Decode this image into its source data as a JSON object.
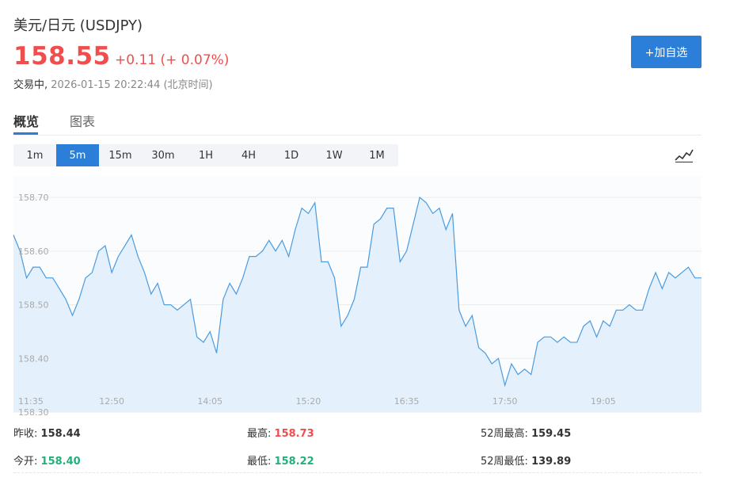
{
  "header": {
    "title": "美元/日元 (USDJPY)",
    "price": "158.55",
    "change": "+0.11 (+ 0.07%)",
    "status": "交易中,",
    "timestamp": "2026-01-15 20:22:44 (北京时间)",
    "add_button": "+加自选"
  },
  "tabs": [
    {
      "label": "概览",
      "active": true
    },
    {
      "label": "图表",
      "active": false
    }
  ],
  "periods": [
    {
      "label": "1m",
      "active": false
    },
    {
      "label": "5m",
      "active": true
    },
    {
      "label": "15m",
      "active": false
    },
    {
      "label": "30m",
      "active": false
    },
    {
      "label": "1H",
      "active": false
    },
    {
      "label": "4H",
      "active": false
    },
    {
      "label": "1D",
      "active": false
    },
    {
      "label": "1W",
      "active": false
    },
    {
      "label": "1M",
      "active": false
    }
  ],
  "chart_type_icon": "line-chart-icon",
  "chart_data": {
    "type": "area",
    "y_ticks": [
      "158.70",
      "158.60",
      "158.50",
      "158.40",
      "158.30"
    ],
    "ylim": [
      158.3,
      158.74
    ],
    "x_ticks": [
      "11:35",
      "12:50",
      "14:05",
      "15:20",
      "16:35",
      "17:50",
      "19:05"
    ],
    "x_tick_index": [
      0,
      15,
      30,
      45,
      60,
      75,
      90
    ],
    "values": [
      158.63,
      158.6,
      158.55,
      158.57,
      158.57,
      158.55,
      158.55,
      158.53,
      158.51,
      158.48,
      158.51,
      158.55,
      158.56,
      158.6,
      158.61,
      158.56,
      158.59,
      158.61,
      158.63,
      158.59,
      158.56,
      158.52,
      158.54,
      158.5,
      158.5,
      158.49,
      158.5,
      158.51,
      158.44,
      158.43,
      158.45,
      158.41,
      158.51,
      158.54,
      158.52,
      158.55,
      158.59,
      158.59,
      158.6,
      158.62,
      158.6,
      158.62,
      158.59,
      158.64,
      158.68,
      158.67,
      158.69,
      158.58,
      158.58,
      158.55,
      158.46,
      158.48,
      158.51,
      158.57,
      158.57,
      158.65,
      158.66,
      158.68,
      158.68,
      158.58,
      158.6,
      158.65,
      158.7,
      158.69,
      158.67,
      158.68,
      158.64,
      158.67,
      158.49,
      158.46,
      158.48,
      158.42,
      158.41,
      158.39,
      158.4,
      158.35,
      158.39,
      158.37,
      158.38,
      158.37,
      158.43,
      158.44,
      158.44,
      158.43,
      158.44,
      158.43,
      158.43,
      158.46,
      158.47,
      158.44,
      158.47,
      158.46,
      158.49,
      158.49,
      158.5,
      158.49,
      158.49,
      158.53,
      158.56,
      158.53,
      158.56,
      158.55,
      158.56,
      158.57,
      158.55,
      158.55
    ],
    "colors": {
      "line": "#4a9be0",
      "fill": "#e4f0fb",
      "grid": "#ececec",
      "axis_text": "#aaaaaa"
    }
  },
  "stats": [
    {
      "label": "昨收:",
      "value": "158.44",
      "tone": "neutral"
    },
    {
      "label": "最高:",
      "value": "158.73",
      "tone": "up"
    },
    {
      "label": "52周最高:",
      "value": "159.45",
      "tone": "neutral"
    },
    {
      "label": "今开:",
      "value": "158.40",
      "tone": "down"
    },
    {
      "label": "最低:",
      "value": "158.22",
      "tone": "down"
    },
    {
      "label": "52周最低:",
      "value": "139.89",
      "tone": "neutral"
    }
  ],
  "colors": {
    "accent": "#2b7fd9",
    "up": "#f04d4d",
    "down": "#23b07a"
  }
}
